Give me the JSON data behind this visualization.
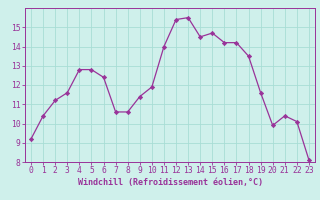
{
  "x": [
    0,
    1,
    2,
    3,
    4,
    5,
    6,
    7,
    8,
    9,
    10,
    11,
    12,
    13,
    14,
    15,
    16,
    17,
    18,
    19,
    20,
    21,
    22,
    23
  ],
  "y": [
    9.2,
    10.4,
    11.2,
    11.6,
    12.8,
    12.8,
    12.4,
    10.6,
    10.6,
    11.4,
    11.9,
    14.0,
    15.4,
    15.5,
    14.5,
    14.7,
    14.2,
    14.2,
    13.5,
    11.6,
    9.9,
    10.4,
    10.1,
    8.1
  ],
  "line_color": "#993399",
  "marker": "D",
  "marker_size": 2.2,
  "bg_color": "#cff0eb",
  "grid_color": "#a8ddd5",
  "xlabel": "Windchill (Refroidissement éolien,°C)",
  "ylim": [
    8,
    16
  ],
  "xlim_min": -0.5,
  "xlim_max": 23.5,
  "yticks": [
    8,
    9,
    10,
    11,
    12,
    13,
    14,
    15
  ],
  "xticks": [
    0,
    1,
    2,
    3,
    4,
    5,
    6,
    7,
    8,
    9,
    10,
    11,
    12,
    13,
    14,
    15,
    16,
    17,
    18,
    19,
    20,
    21,
    22,
    23
  ],
  "xtick_labels": [
    "0",
    "1",
    "2",
    "3",
    "4",
    "5",
    "6",
    "7",
    "8",
    "9",
    "10",
    "11",
    "12",
    "13",
    "14",
    "15",
    "16",
    "17",
    "18",
    "19",
    "20",
    "21",
    "22",
    "23"
  ],
  "line_color2": "#882288",
  "label_fontsize": 6.0,
  "tick_fontsize": 5.8
}
